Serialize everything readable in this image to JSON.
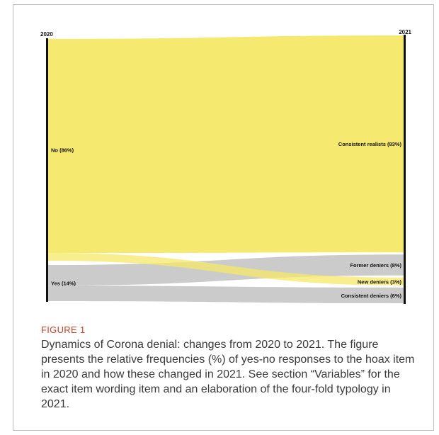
{
  "chart_data": {
    "type": "sankey",
    "title": "",
    "left_axis_label": "2020",
    "right_axis_label": "2021",
    "source_nodes": [
      {
        "id": "no",
        "label": "No (86%)",
        "value": 86,
        "color": "#f5e867"
      },
      {
        "id": "yes",
        "label": "Yes (14%)",
        "value": 14,
        "color": "#c8c8c8"
      }
    ],
    "target_nodes": [
      {
        "id": "realists",
        "label": "Consistent realists (83%)",
        "value": 83
      },
      {
        "id": "former",
        "label": "Former deniers (8%)",
        "value": 8
      },
      {
        "id": "new",
        "label": "New deniers (3%)",
        "value": 3
      },
      {
        "id": "consistent",
        "label": "Consistent deniers (6%)",
        "value": 6
      }
    ],
    "flows": [
      {
        "source": "no",
        "target": "realists",
        "value": 83,
        "color": "#f5e867"
      },
      {
        "source": "no",
        "target": "new",
        "value": 3,
        "color": "#f5e867"
      },
      {
        "source": "yes",
        "target": "former",
        "value": 8,
        "color": "#c8c8c8"
      },
      {
        "source": "yes",
        "target": "consistent",
        "value": 6,
        "color": "#c8c8c8"
      }
    ]
  },
  "figure": {
    "label": "FIGURE 1",
    "caption": "Dynamics of Corona denial: changes from 2020 to 2021. The figure presents the relative frequencies (%) of yes-no responses to the hoax item in 2020 and how these changed in 2021. See section “Variables” for the exact item wording item and an elaboration of the four-fold typology in 2021."
  }
}
